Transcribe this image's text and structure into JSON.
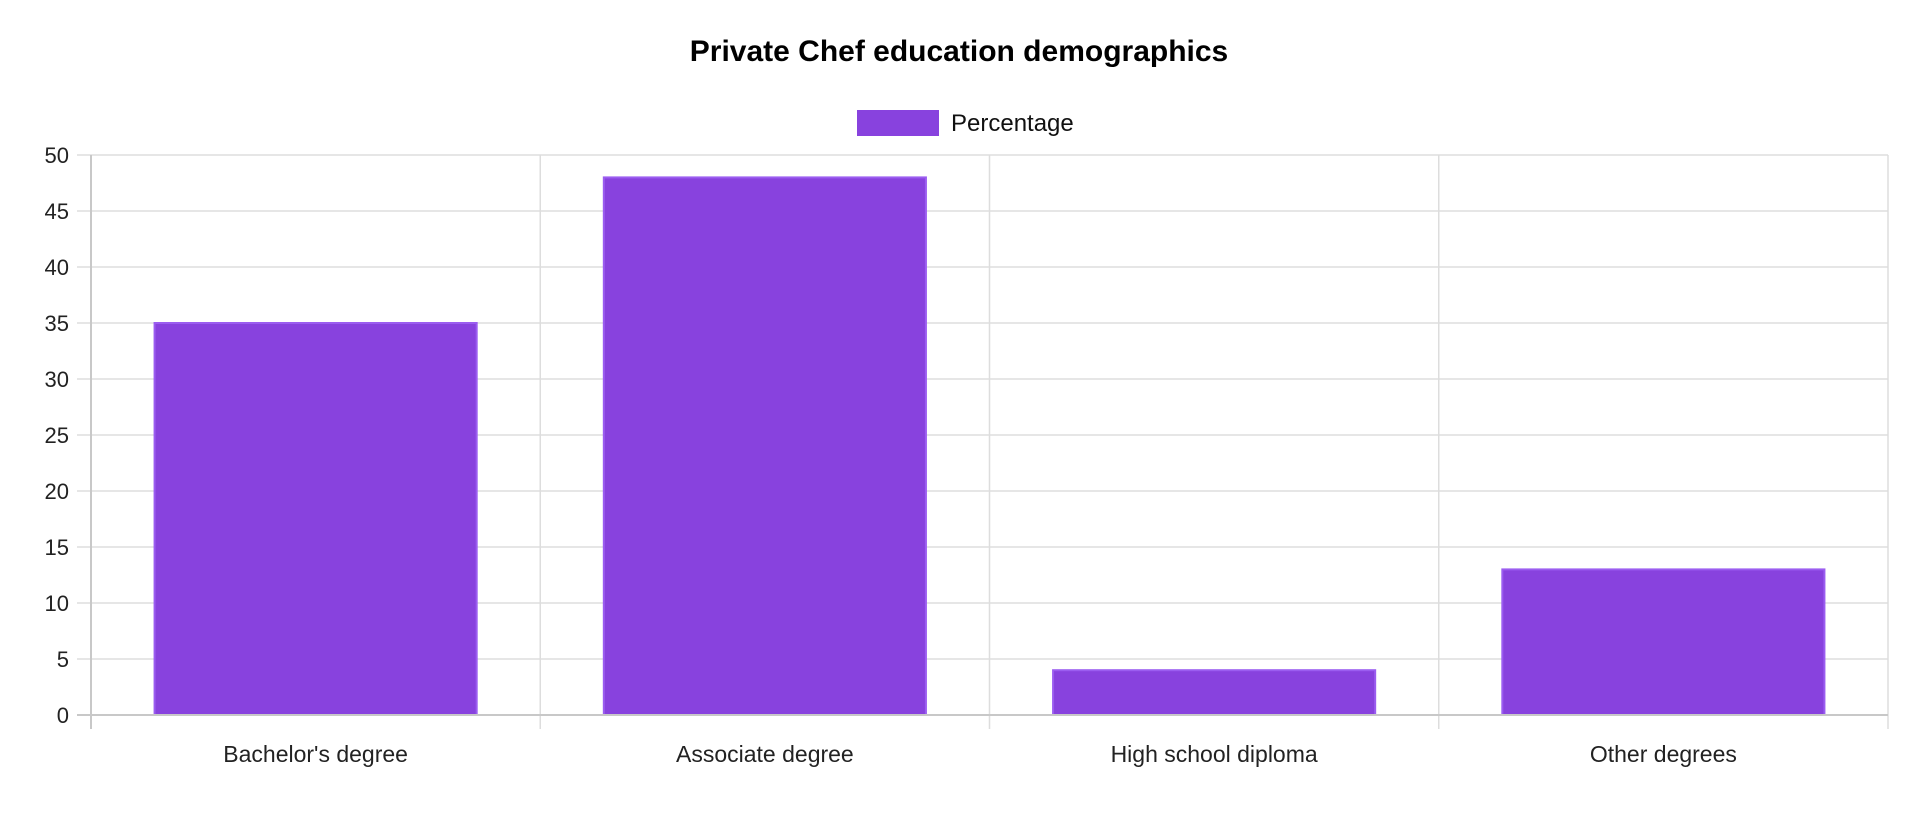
{
  "chart_data": {
    "type": "bar",
    "title": "Private Chef education demographics",
    "categories": [
      "Bachelor's degree",
      "Associate degree",
      "High school diploma",
      "Other degrees"
    ],
    "series": [
      {
        "name": "Percentage",
        "values": [
          35,
          48,
          4,
          13
        ],
        "color": "#8842de"
      }
    ],
    "ylim": [
      0,
      50
    ],
    "yticks": [
      0,
      5,
      10,
      15,
      20,
      25,
      30,
      35,
      40,
      45,
      50
    ],
    "grid": true,
    "legend_position": "top-center",
    "xlabel": "",
    "ylabel": ""
  }
}
